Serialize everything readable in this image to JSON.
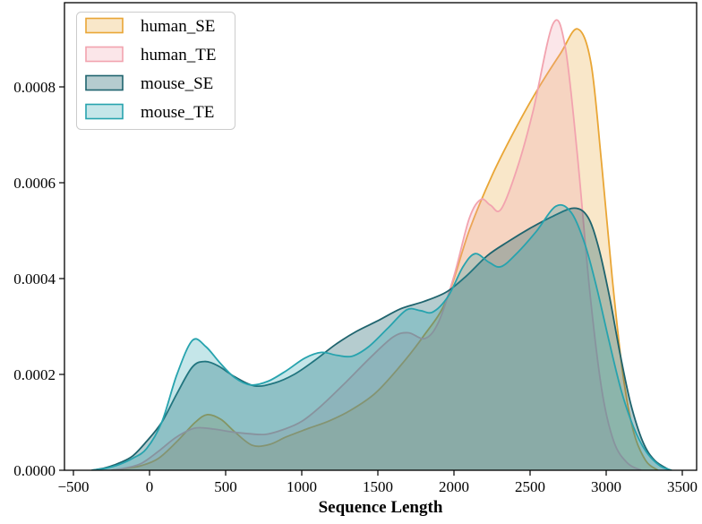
{
  "chart_data": {
    "type": "area",
    "subtype": "kde-density-plot",
    "title": "",
    "xlabel": "Sequence Length",
    "ylabel": "",
    "xlim": [
      -500,
      3500
    ],
    "ylim": [
      0,
      0.000976
    ],
    "grid": false,
    "legend_position": "upper-left",
    "xticks": [
      -500,
      0,
      500,
      1000,
      1500,
      2000,
      2500,
      3000,
      3500
    ],
    "xtick_labels": [
      "−500",
      "0",
      "500",
      "1000",
      "1500",
      "2000",
      "2500",
      "3000",
      "3500"
    ],
    "yticks": [
      0,
      0.0002,
      0.0004,
      0.0006,
      0.0008
    ],
    "ytick_labels": [
      "0.0000",
      "0.0002",
      "0.0004",
      "0.0006",
      "0.0008"
    ],
    "series": [
      {
        "name": "human_SE",
        "line_color": "#E9A636",
        "fill_color": "rgba(233,166,54,0.27)",
        "points": [
          [
            -250,
            0
          ],
          [
            -150,
            4e-06
          ],
          [
            -50,
            1e-05
          ],
          [
            60,
            2.5e-05
          ],
          [
            180,
            6e-05
          ],
          [
            300,
            0.0001
          ],
          [
            380,
            0.000116
          ],
          [
            470,
            0.000106
          ],
          [
            560,
            8e-05
          ],
          [
            676,
            5.2e-05
          ],
          [
            790,
            5.4e-05
          ],
          [
            900,
            7e-05
          ],
          [
            1050,
            8.8e-05
          ],
          [
            1180,
            0.000103
          ],
          [
            1320,
            0.000125
          ],
          [
            1480,
            0.00016
          ],
          [
            1640,
            0.000215
          ],
          [
            1800,
            0.00028
          ],
          [
            1950,
            0.000355
          ],
          [
            2100,
            0.0005
          ],
          [
            2250,
            0.000615
          ],
          [
            2400,
            0.00071
          ],
          [
            2550,
            0.000795
          ],
          [
            2700,
            0.00087
          ],
          [
            2812,
            0.000921
          ],
          [
            2900,
            0.00085
          ],
          [
            2970,
            0.00064
          ],
          [
            3040,
            0.0004
          ],
          [
            3110,
            0.0002
          ],
          [
            3180,
            8e-05
          ],
          [
            3260,
            2e-05
          ],
          [
            3340,
            0
          ]
        ]
      },
      {
        "name": "human_TE",
        "line_color": "#F2A3AF",
        "fill_color": "rgba(242,163,175,0.27)",
        "points": [
          [
            -250,
            0
          ],
          [
            -150,
            5e-06
          ],
          [
            -50,
            1.5e-05
          ],
          [
            60,
            4e-05
          ],
          [
            180,
            7e-05
          ],
          [
            300,
            8.8e-05
          ],
          [
            420,
            8.6e-05
          ],
          [
            540,
            8e-05
          ],
          [
            660,
            7.6e-05
          ],
          [
            765,
            7.5e-05
          ],
          [
            880,
            8.5e-05
          ],
          [
            1000,
            0.000102
          ],
          [
            1130,
            0.000135
          ],
          [
            1294,
            0.000185
          ],
          [
            1450,
            0.000235
          ],
          [
            1600,
            0.000278
          ],
          [
            1700,
            0.000287
          ],
          [
            1810,
            0.000275
          ],
          [
            1900,
            0.00031
          ],
          [
            2000,
            0.000405
          ],
          [
            2100,
            0.000525
          ],
          [
            2176,
            0.000565
          ],
          [
            2240,
            0.000553
          ],
          [
            2310,
            0.000545
          ],
          [
            2420,
            0.000635
          ],
          [
            2520,
            0.00075
          ],
          [
            2650,
            0.000931
          ],
          [
            2730,
            0.000885
          ],
          [
            2810,
            0.00066
          ],
          [
            2890,
            0.00038
          ],
          [
            2970,
            0.00017
          ],
          [
            3050,
            6e-05
          ],
          [
            3140,
            1.5e-05
          ],
          [
            3230,
            0
          ]
        ]
      },
      {
        "name": "mouse_SE",
        "line_color": "#1F646E",
        "fill_color": "rgba(31,100,110,0.33)",
        "points": [
          [
            -380,
            0
          ],
          [
            -290,
            5e-06
          ],
          [
            -200,
            1.5e-05
          ],
          [
            -110,
            3e-05
          ],
          [
            -20,
            6e-05
          ],
          [
            80,
            0.0001
          ],
          [
            180,
            0.00016
          ],
          [
            280,
            0.000215
          ],
          [
            360,
            0.000227
          ],
          [
            450,
            0.000218
          ],
          [
            560,
            0.000195
          ],
          [
            690,
            0.000176
          ],
          [
            820,
            0.000182
          ],
          [
            950,
            0.0002
          ],
          [
            1080,
            0.000228
          ],
          [
            1220,
            0.000262
          ],
          [
            1360,
            0.00029
          ],
          [
            1500,
            0.000312
          ],
          [
            1650,
            0.000337
          ],
          [
            1800,
            0.000352
          ],
          [
            1950,
            0.000372
          ],
          [
            2080,
            0.000405
          ],
          [
            2220,
            0.000448
          ],
          [
            2360,
            0.000478
          ],
          [
            2500,
            0.000505
          ],
          [
            2650,
            0.00053
          ],
          [
            2790,
            0.000547
          ],
          [
            2880,
            0.000528
          ],
          [
            2950,
            0.000465
          ],
          [
            3020,
            0.000365
          ],
          [
            3090,
            0.000245
          ],
          [
            3160,
            0.00014
          ],
          [
            3240,
            6e-05
          ],
          [
            3320,
            2e-05
          ],
          [
            3420,
            0
          ]
        ]
      },
      {
        "name": "mouse_TE",
        "line_color": "#27A3AE",
        "fill_color": "rgba(39,163,174,0.27)",
        "points": [
          [
            -380,
            0
          ],
          [
            -290,
            4e-06
          ],
          [
            -200,
            1.2e-05
          ],
          [
            -110,
            2.5e-05
          ],
          [
            -20,
            4.5e-05
          ],
          [
            80,
            0.0001
          ],
          [
            180,
            0.0002
          ],
          [
            282,
            0.000271
          ],
          [
            370,
            0.000258
          ],
          [
            460,
            0.000225
          ],
          [
            560,
            0.000193
          ],
          [
            665,
            0.000178
          ],
          [
            780,
            0.000186
          ],
          [
            900,
            0.000208
          ],
          [
            1020,
            0.000234
          ],
          [
            1130,
            0.000246
          ],
          [
            1230,
            0.00024
          ],
          [
            1330,
            0.000238
          ],
          [
            1440,
            0.000258
          ],
          [
            1570,
            0.000298
          ],
          [
            1690,
            0.000335
          ],
          [
            1780,
            0.000333
          ],
          [
            1860,
            0.00033
          ],
          [
            1960,
            0.000362
          ],
          [
            2060,
            0.000425
          ],
          [
            2140,
            0.000452
          ],
          [
            2230,
            0.000434
          ],
          [
            2310,
            0.000425
          ],
          [
            2420,
            0.000455
          ],
          [
            2540,
            0.000498
          ],
          [
            2670,
            0.000551
          ],
          [
            2770,
            0.000538
          ],
          [
            2860,
            0.000472
          ],
          [
            2940,
            0.000378
          ],
          [
            3020,
            0.000268
          ],
          [
            3100,
            0.000165
          ],
          [
            3180,
            9e-05
          ],
          [
            3260,
            4e-05
          ],
          [
            3350,
            1e-05
          ],
          [
            3430,
            0
          ]
        ]
      }
    ]
  }
}
